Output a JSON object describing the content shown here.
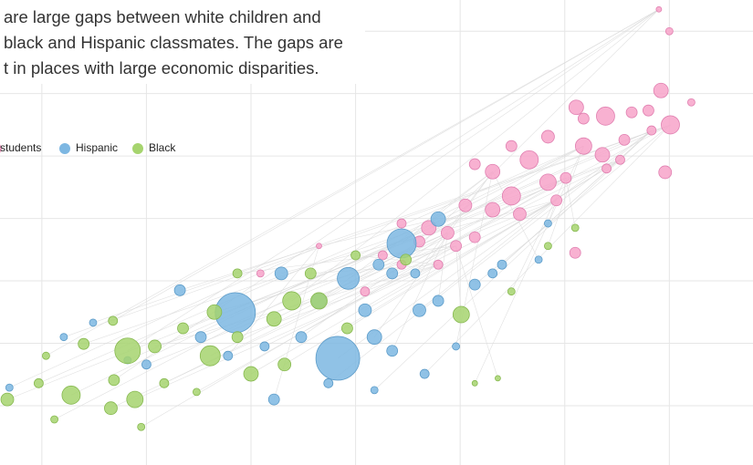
{
  "chart_data": {
    "type": "scatter",
    "annotation_lines": [
      "are large gaps between white children and",
      "black and Hispanic classmates. The gaps are",
      "t in places with large economic disparities."
    ],
    "xlim": [
      -0.4,
      6.8
    ],
    "ylim": [
      -0.95,
      6.5
    ],
    "xticks": [
      0,
      1,
      2,
      3,
      4,
      5,
      6
    ],
    "yticks": [
      0,
      1,
      2,
      3,
      4,
      5,
      6
    ],
    "grid": true,
    "series": [
      {
        "name": "students",
        "color": "#f7a3c9",
        "stroke": "#e07fb0",
        "x": [
          5.11,
          5.39,
          5.92,
          6.01,
          5.96,
          6.0,
          5.9,
          6.21,
          5.64,
          5.8,
          5.83,
          5.57,
          5.36,
          5.18,
          4.84,
          4.66,
          4.49,
          4.31,
          4.14,
          4.84,
          5.01,
          4.49,
          4.31,
          4.05,
          3.88,
          3.7,
          3.61,
          3.96,
          3.44,
          4.14,
          4.57,
          4.92,
          5.1,
          5.4,
          3.79,
          3.44,
          3.26,
          2.09,
          2.65,
          3.09,
          5.18,
          5.53
        ],
        "values": [
          4.78,
          4.64,
          5.05,
          4.5,
          3.74,
          6.0,
          6.35,
          4.86,
          4.7,
          4.73,
          4.41,
          4.26,
          4.02,
          4.16,
          4.31,
          3.94,
          4.16,
          3.75,
          3.87,
          3.58,
          3.65,
          3.36,
          3.14,
          3.21,
          2.77,
          2.85,
          2.63,
          2.56,
          2.92,
          2.7,
          3.07,
          3.29,
          2.45,
          3.8,
          2.26,
          2.26,
          2.41,
          2.12,
          2.56,
          1.83,
          4.6,
          3.94
        ],
        "sizes": [
          8,
          10,
          8,
          10,
          7,
          4,
          3,
          4,
          6,
          6,
          5,
          6,
          8,
          9,
          7,
          10,
          6,
          8,
          6,
          9,
          6,
          10,
          8,
          7,
          7,
          8,
          6,
          6,
          5,
          6,
          7,
          6,
          6,
          5,
          5,
          5,
          5,
          4,
          3,
          5,
          6,
          5
        ]
      },
      {
        "name": "Hispanic",
        "color": "#7db7e2",
        "stroke": "#5d9cc9",
        "x": [
          1.85,
          2.83,
          3.44,
          2.93,
          2.29,
          1.32,
          0.49,
          0.82,
          3.18,
          3.35,
          3.61,
          3.79,
          4.14,
          4.31,
          2.65,
          2.48,
          2.13,
          2.22,
          3.66,
          3.18,
          3.96,
          1.52,
          1.0,
          -0.31,
          0.21,
          4.4,
          4.75,
          3.79,
          3.09,
          1.78,
          3.35,
          2.74,
          3.57,
          3.22,
          4.84
        ],
        "values": [
          1.49,
          0.76,
          2.6,
          2.04,
          2.12,
          1.85,
          1.33,
          0.73,
          1.1,
          0.88,
          1.53,
          2.99,
          1.94,
          2.12,
          1.68,
          1.1,
          0.95,
          0.1,
          0.51,
          0.25,
          0.95,
          1.1,
          0.66,
          0.29,
          1.1,
          2.26,
          2.34,
          1.68,
          1.53,
          0.8,
          2.12,
          0.36,
          2.12,
          2.26,
          2.92
        ],
        "sizes": [
          22,
          24,
          16,
          12,
          7,
          6,
          4,
          4,
          8,
          6,
          7,
          8,
          6,
          5,
          8,
          6,
          5,
          6,
          5,
          4,
          4,
          6,
          5,
          4,
          4,
          5,
          4,
          6,
          7,
          5,
          6,
          5,
          5,
          6,
          4
        ]
      },
      {
        "name": "Black",
        "color": "#a6d46e",
        "stroke": "#86b84f",
        "x": [
          0.82,
          0.28,
          -0.33,
          0.66,
          0.89,
          0.4,
          0.69,
          -0.03,
          1.61,
          1.65,
          2.0,
          2.32,
          2.39,
          2.65,
          2.22,
          4.01,
          1.08,
          1.35,
          0.68,
          0.12,
          0.95,
          1.48,
          1.87,
          2.92,
          3.48,
          4.84,
          5.1,
          4.36,
          2.57,
          1.17,
          0.04,
          4.14,
          4.49,
          1.87,
          3.0
        ],
        "values": [
          0.88,
          0.17,
          0.1,
          -0.04,
          0.1,
          0.99,
          0.41,
          0.36,
          0.8,
          1.5,
          0.51,
          0.66,
          1.68,
          1.68,
          1.39,
          1.46,
          0.95,
          1.24,
          1.36,
          -0.22,
          -0.34,
          0.22,
          1.1,
          1.24,
          2.34,
          2.56,
          2.85,
          0.44,
          2.12,
          0.36,
          0.8,
          0.36,
          1.83,
          2.12,
          2.41
        ],
        "sizes": [
          14,
          10,
          7,
          7,
          9,
          6,
          6,
          5,
          11,
          8,
          8,
          7,
          10,
          9,
          8,
          9,
          7,
          6,
          5,
          4,
          4,
          4,
          6,
          6,
          6,
          4,
          4,
          3,
          6,
          5,
          4,
          3,
          4,
          5,
          5
        ]
      }
    ]
  }
}
